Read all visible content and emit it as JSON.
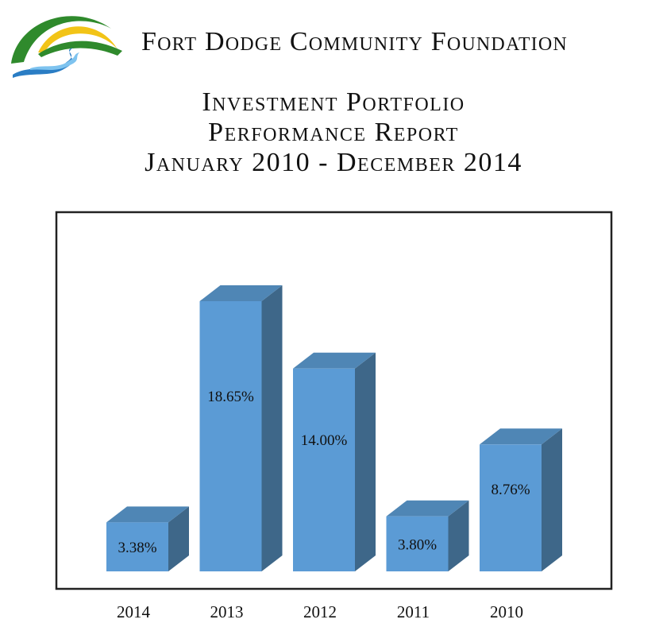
{
  "header": {
    "org_name": "Fort Dodge Community Foundation",
    "title_lines": [
      "Investment Portfolio",
      "Performance Report",
      "January 2010 - December 2014"
    ]
  },
  "colors": {
    "bar_front": "#5b9bd5",
    "bar_side": "#3e6789",
    "bar_top": "#4f86b5",
    "frame": "#222222",
    "logo_green": "#2f8a2c",
    "logo_yellow": "#f2c417",
    "logo_blue": "#2a7dc4"
  },
  "chart_data": {
    "type": "bar",
    "style": "3d-columns",
    "categories": [
      "2014",
      "2013",
      "2012",
      "2011",
      "2010"
    ],
    "values": [
      3.38,
      18.65,
      14.0,
      3.8,
      8.76
    ],
    "data_labels": [
      "3.38%",
      "18.65%",
      "14.00%",
      "3.80%",
      "8.76%"
    ],
    "title": "",
    "xlabel": "",
    "ylabel": "",
    "ylim": [
      0,
      20
    ],
    "grid": false,
    "legend": "none"
  }
}
